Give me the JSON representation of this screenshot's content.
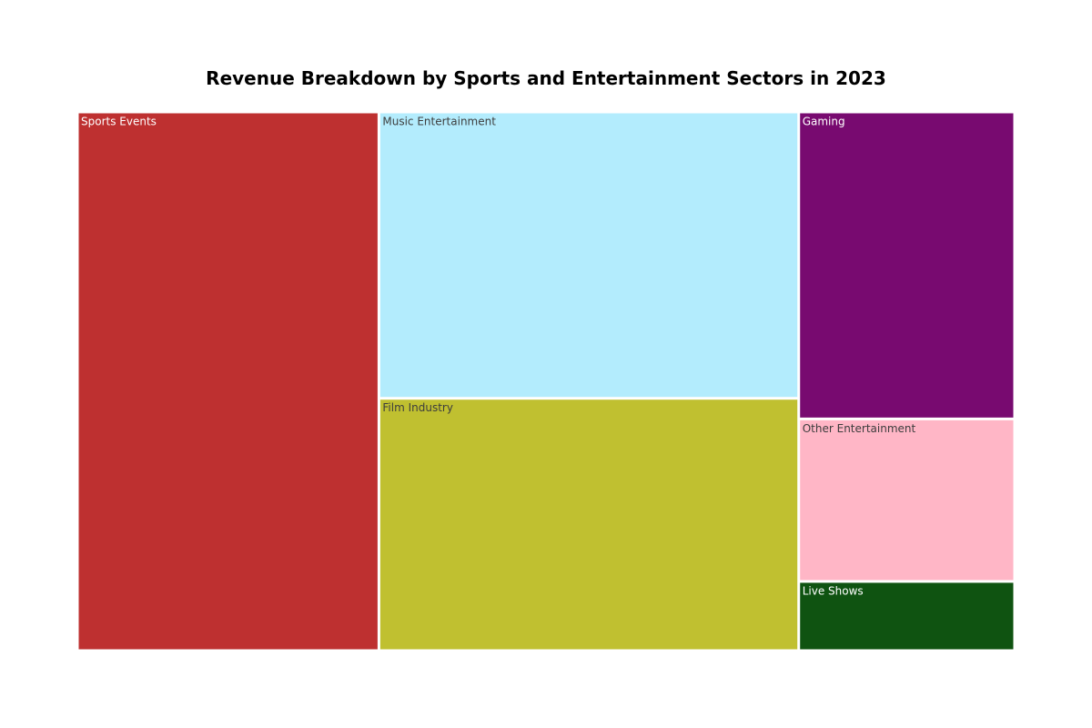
{
  "chart_data": {
    "type": "treemap",
    "title": "Revenue Breakdown by Sports and Entertainment Sectors in 2023",
    "items": [
      {
        "name": "Sports Events",
        "value": 25,
        "color": "#be3030",
        "label_color": "#ffffff"
      },
      {
        "name": "Music Entertainment",
        "value": 18.5,
        "color": "#b3ecfd",
        "label_color": "#3d3d3d"
      },
      {
        "name": "Film Industry",
        "value": 16.3,
        "color": "#c0c030",
        "label_color": "#3d3d3d"
      },
      {
        "name": "Gaming",
        "value": 10.2,
        "color": "#780a70",
        "label_color": "#ffffff"
      },
      {
        "name": "Other Entertainment",
        "value": 5.4,
        "color": "#ffb6c6",
        "label_color": "#3d3d3d"
      },
      {
        "name": "Live Shows",
        "value": 2.3,
        "color": "#0f5311",
        "label_color": "#ffffff"
      }
    ]
  }
}
